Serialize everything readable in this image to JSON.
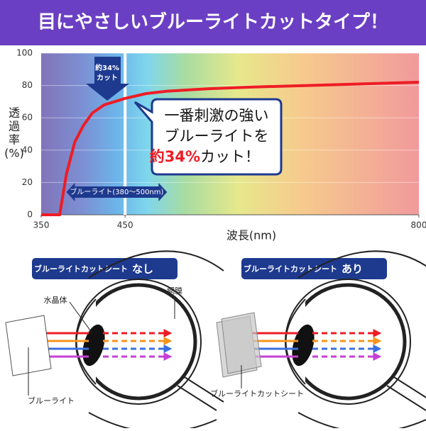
{
  "header": {
    "title": "目にやさしいブルーライトカットタイプ！"
  },
  "chart_data": {
    "type": "line",
    "x_label": "波長(nm)",
    "y_label_lines": [
      "透",
      "過",
      "率",
      "(%)"
    ],
    "x": [
      350,
      372,
      380,
      390,
      400,
      411,
      425,
      450,
      475,
      500,
      550,
      600,
      700,
      800
    ],
    "series": [
      {
        "name": "透過率",
        "color": "#ee1c25",
        "values": [
          0,
          0,
          25,
          45,
          55,
          63,
          68,
          72,
          75,
          76.5,
          78,
          79,
          80.5,
          82
        ]
      }
    ],
    "xlim": [
      350,
      800
    ],
    "xticks": [
      350,
      450,
      800
    ],
    "ylim": [
      0,
      100
    ],
    "yticks": [
      0,
      20,
      40,
      60,
      80,
      100
    ],
    "grid": true,
    "highlight_x": 450,
    "cut_label": [
      "約34%",
      "カット"
    ],
    "band": [
      380,
      500
    ],
    "band_label": "ブルーライト(380〜500nm)",
    "callout": [
      "一番刺激の強い",
      "ブルーライトを",
      "約34%",
      "カット！"
    ]
  },
  "diagrams": [
    {
      "button": [
        "ブルーライトカットシート",
        "なし"
      ],
      "labels": [
        "水晶体",
        "網膜",
        "ブルーライト"
      ]
    },
    {
      "button": [
        "ブルーライトカットシート",
        "あり"
      ],
      "labels": [
        "ブルーライトカットシート"
      ]
    }
  ]
}
